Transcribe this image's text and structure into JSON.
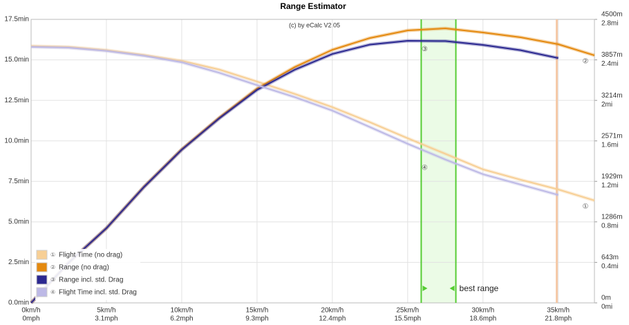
{
  "chart_data": {
    "type": "line",
    "title": "Range Estimator",
    "subtitle": "(c) by eCalc  V2.05",
    "x": [
      0,
      2.5,
      5,
      7.5,
      10,
      12.5,
      15,
      17.5,
      20,
      22.5,
      25,
      27.5,
      30,
      32.5,
      35,
      37.4
    ],
    "xlim": [
      0,
      37.4
    ],
    "xticks": [
      {
        "value": 0,
        "label": [
          "0km/h",
          "0mph"
        ]
      },
      {
        "value": 5,
        "label": [
          "5km/h",
          "3.1mph"
        ]
      },
      {
        "value": 10,
        "label": [
          "10km/h",
          "6.2mph"
        ]
      },
      {
        "value": 15,
        "label": [
          "15km/h",
          "9.3mph"
        ]
      },
      {
        "value": 20,
        "label": [
          "20km/h",
          "12.4mph"
        ]
      },
      {
        "value": 25,
        "label": [
          "25km/h",
          "15.5mph"
        ]
      },
      {
        "value": 30,
        "label": [
          "30km/h",
          "18.6mph"
        ]
      },
      {
        "value": 35,
        "label": [
          "35km/h",
          "21.8mph"
        ]
      }
    ],
    "ylim": [
      0,
      17.5
    ],
    "yticks": [
      {
        "value": 0,
        "label": "0.0min"
      },
      {
        "value": 2.5,
        "label": "2.5min"
      },
      {
        "value": 5,
        "label": "5.0min"
      },
      {
        "value": 7.5,
        "label": "7.5min"
      },
      {
        "value": 10,
        "label": "10.0min"
      },
      {
        "value": 12.5,
        "label": "12.5min"
      },
      {
        "value": 15,
        "label": "15.0min"
      },
      {
        "value": 17.5,
        "label": "17.5min"
      }
    ],
    "y2lim": [
      0,
      4500
    ],
    "y2ticks": [
      {
        "value": 0,
        "label": [
          "0m",
          "0mi"
        ]
      },
      {
        "value": 643,
        "label": [
          "643m",
          "0.4mi"
        ]
      },
      {
        "value": 1286,
        "label": [
          "1286m",
          "0.8mi"
        ]
      },
      {
        "value": 1929,
        "label": [
          "1929m",
          "1.2mi"
        ]
      },
      {
        "value": 2571,
        "label": [
          "2571m",
          "1.6mi"
        ]
      },
      {
        "value": 3214,
        "label": [
          "3214m",
          "2mi"
        ]
      },
      {
        "value": 3857,
        "label": [
          "3857m",
          "2.4mi"
        ]
      },
      {
        "value": 4500,
        "label": [
          "4500m",
          "2.8mi"
        ]
      }
    ],
    "grid": true,
    "legend": "bottom-left",
    "series": [
      {
        "name": "Flight Time (no drag)",
        "marker": "①",
        "color": "#f7cf95",
        "values": [
          15.85,
          15.8,
          15.6,
          15.3,
          14.94,
          14.4,
          13.66,
          12.9,
          12.08,
          11.15,
          10.16,
          9.2,
          8.24,
          7.6,
          7.0,
          6.32
        ]
      },
      {
        "name": "Range (no drag)",
        "marker": "②",
        "color": "#e4890f",
        "axis": "y2",
        "values": [
          0,
          640,
          1185,
          1844,
          2437,
          2941,
          3402,
          3743,
          4017,
          4204,
          4324,
          4357,
          4292,
          4215,
          4105,
          3929
        ]
      },
      {
        "name": "Range incl. std. Drag",
        "marker": "③",
        "color": "#2b2890",
        "axis": "y2",
        "values": [
          0,
          640,
          1185,
          1840,
          2430,
          2930,
          3380,
          3700,
          3951,
          4100,
          4160,
          4155,
          4094,
          4010,
          3885,
          null
        ]
      },
      {
        "name": "Flight Time incl. std. Drag",
        "marker": "④",
        "color": "#bdb9e6",
        "values": [
          15.8,
          15.75,
          15.55,
          15.25,
          14.85,
          14.2,
          13.44,
          12.7,
          11.87,
          10.85,
          9.82,
          8.85,
          7.94,
          7.3,
          6.66,
          null
        ]
      }
    ],
    "best_range": {
      "label": "best range",
      "from": 25.9,
      "to": 28.2
    },
    "max_speed": 34.9
  }
}
